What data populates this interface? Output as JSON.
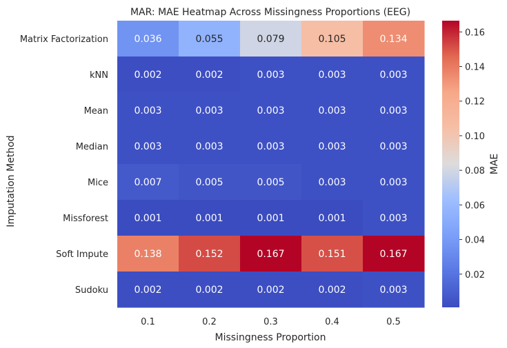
{
  "chart_data": {
    "type": "heatmap",
    "title": "MAR: MAE Heatmap Across Missingness Proportions (EEG)",
    "xlabel": "Missingness Proportion",
    "ylabel": "Imputation Method",
    "x_categories": [
      "0.1",
      "0.2",
      "0.3",
      "0.4",
      "0.5"
    ],
    "y_categories": [
      "Matrix Factorization",
      "kNN",
      "Mean",
      "Median",
      "Mice",
      "Missforest",
      "Soft Impute",
      "Sudoku"
    ],
    "values": [
      [
        0.036,
        0.055,
        0.079,
        0.105,
        0.134
      ],
      [
        0.002,
        0.002,
        0.003,
        0.003,
        0.003
      ],
      [
        0.003,
        0.003,
        0.003,
        0.003,
        0.003
      ],
      [
        0.003,
        0.003,
        0.003,
        0.003,
        0.003
      ],
      [
        0.007,
        0.005,
        0.005,
        0.003,
        0.003
      ],
      [
        0.001,
        0.001,
        0.001,
        0.001,
        0.003
      ],
      [
        0.138,
        0.152,
        0.167,
        0.151,
        0.167
      ],
      [
        0.002,
        0.002,
        0.002,
        0.002,
        0.003
      ]
    ],
    "value_format": "3 decimals",
    "colormap": "coolwarm",
    "colorbar": {
      "label": "MAE",
      "range": [
        0.0008,
        0.1665
      ],
      "ticks": [
        "0.02",
        "0.04",
        "0.06",
        "0.08",
        "0.10",
        "0.12",
        "0.14",
        "0.16"
      ]
    },
    "grid": false
  }
}
